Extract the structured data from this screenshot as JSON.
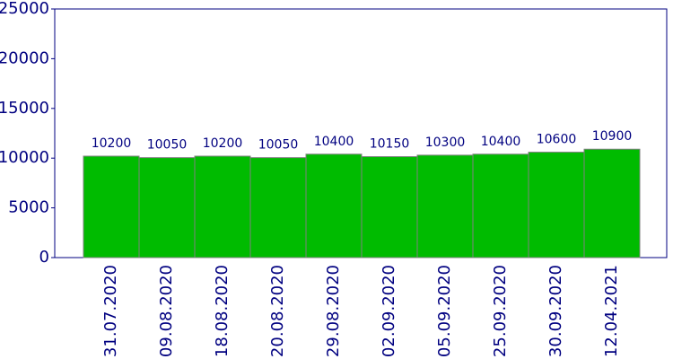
{
  "chart_data": {
    "type": "bar",
    "categories": [
      "31.07.2020",
      "09.08.2020",
      "18.08.2020",
      "20.08.2020",
      "29.08.2020",
      "02.09.2020",
      "05.09.2020",
      "25.09.2020",
      "30.09.2020",
      "12.04.2021"
    ],
    "values": [
      10200,
      10050,
      10200,
      10050,
      10400,
      10150,
      10300,
      10400,
      10600,
      10900
    ],
    "color": "#00bb00",
    "ylim": [
      0,
      25000
    ],
    "yticks": [
      0,
      5000,
      10000,
      15000,
      20000,
      25000
    ],
    "grid": false
  }
}
